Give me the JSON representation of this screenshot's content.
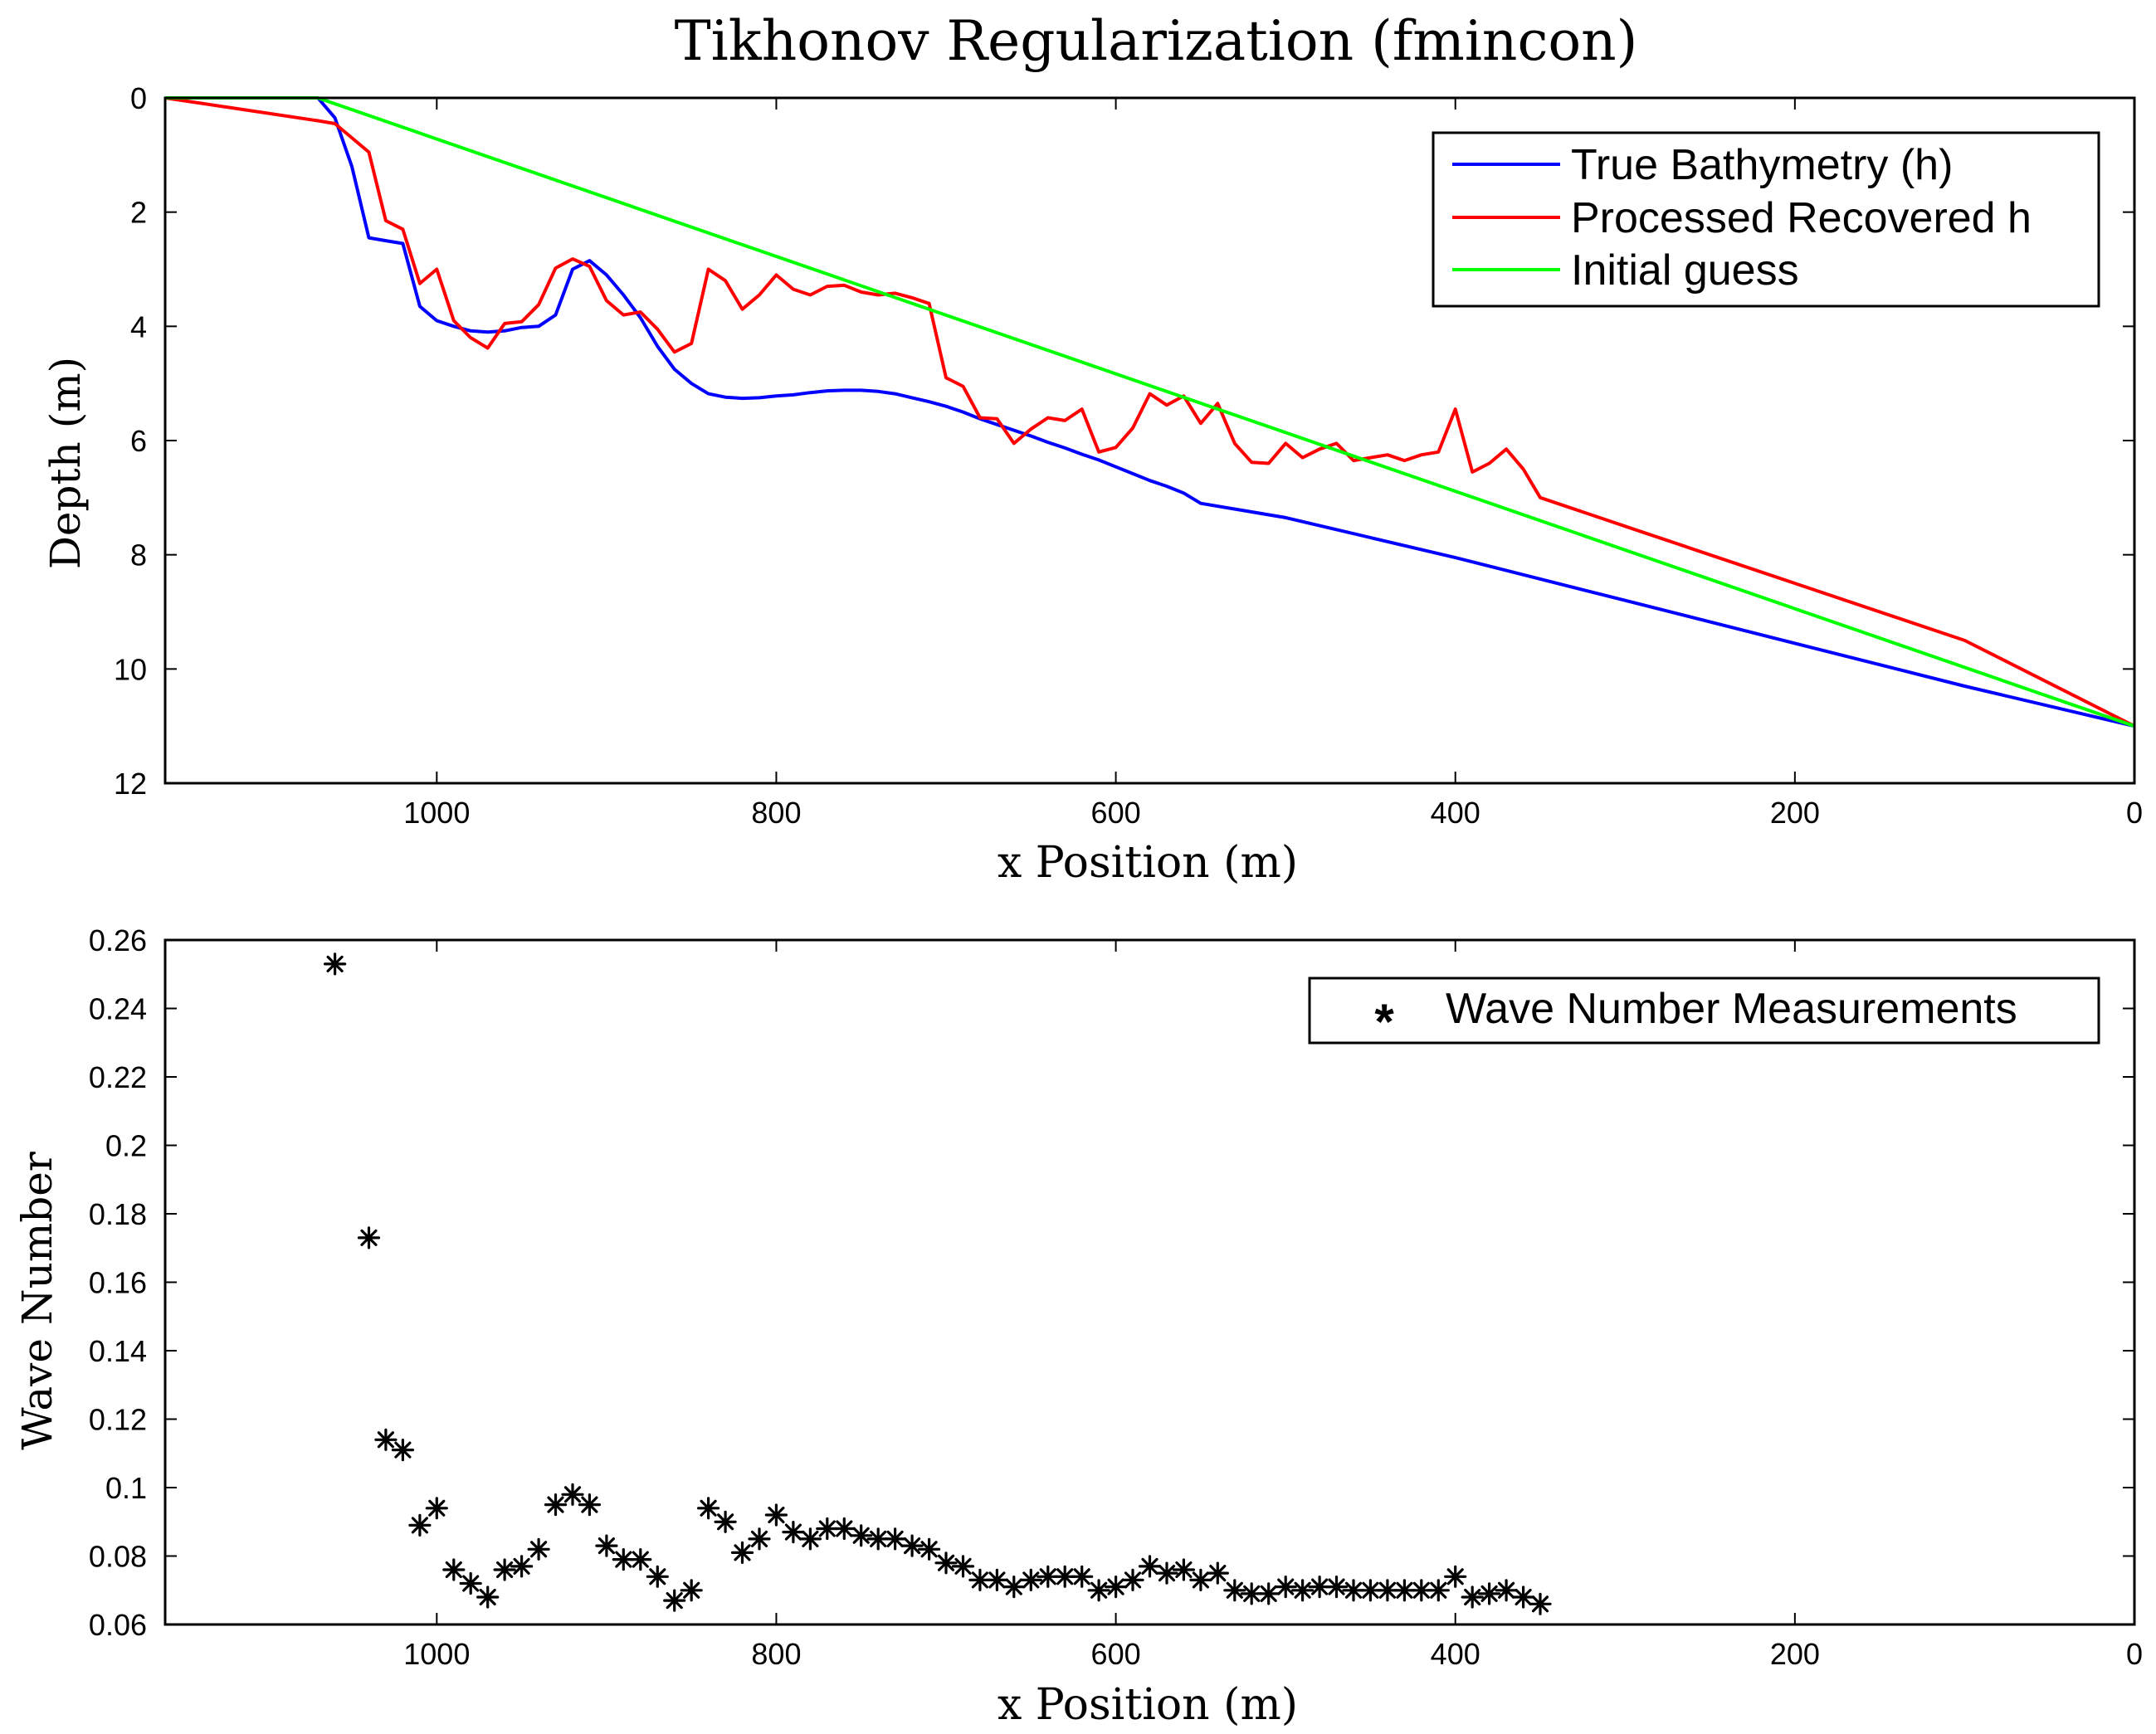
{
  "chart_data": [
    {
      "type": "line",
      "title": "Tikhonov Regularization (fmincon)",
      "xlabel": "x Position (m)",
      "ylabel": "Depth (m)",
      "xlim": [
        1160,
        0
      ],
      "ylim": [
        12,
        0
      ],
      "x_reversed": true,
      "y_reversed": true,
      "xticks": [
        "1000",
        "800",
        "600",
        "400",
        "200",
        "0"
      ],
      "yticks": [
        "0",
        "2",
        "4",
        "6",
        "8",
        "10",
        "12"
      ],
      "grid": false,
      "legend_position": "top-right",
      "series": [
        {
          "name": "True Bathymetry (h)",
          "color": "#0000ff",
          "points": [
            [
              1160,
              0
            ],
            [
              1070,
              0
            ],
            [
              1060,
              0.35
            ],
            [
              1050,
              1.2
            ],
            [
              1040,
              2.45
            ],
            [
              1030,
              2.5
            ],
            [
              1020,
              2.55
            ],
            [
              1010,
              3.65
            ],
            [
              1000,
              3.9
            ],
            [
              990,
              4.0
            ],
            [
              980,
              4.08
            ],
            [
              970,
              4.1
            ],
            [
              960,
              4.08
            ],
            [
              950,
              4.02
            ],
            [
              940,
              4.0
            ],
            [
              930,
              3.8
            ],
            [
              920,
              3.0
            ],
            [
              910,
              2.85
            ],
            [
              900,
              3.1
            ],
            [
              890,
              3.45
            ],
            [
              880,
              3.85
            ],
            [
              870,
              4.35
            ],
            [
              860,
              4.75
            ],
            [
              850,
              5.0
            ],
            [
              840,
              5.18
            ],
            [
              830,
              5.24
            ],
            [
              820,
              5.26
            ],
            [
              810,
              5.25
            ],
            [
              800,
              5.22
            ],
            [
              790,
              5.2
            ],
            [
              780,
              5.16
            ],
            [
              770,
              5.13
            ],
            [
              760,
              5.12
            ],
            [
              750,
              5.12
            ],
            [
              740,
              5.14
            ],
            [
              730,
              5.18
            ],
            [
              720,
              5.25
            ],
            [
              710,
              5.32
            ],
            [
              700,
              5.4
            ],
            [
              690,
              5.5
            ],
            [
              680,
              5.62
            ],
            [
              670,
              5.72
            ],
            [
              660,
              5.82
            ],
            [
              650,
              5.92
            ],
            [
              640,
              6.03
            ],
            [
              630,
              6.13
            ],
            [
              620,
              6.24
            ],
            [
              610,
              6.34
            ],
            [
              600,
              6.46
            ],
            [
              590,
              6.58
            ],
            [
              580,
              6.7
            ],
            [
              570,
              6.8
            ],
            [
              560,
              6.92
            ],
            [
              550,
              7.1
            ],
            [
              500,
              7.35
            ],
            [
              400,
              8.05
            ],
            [
              300,
              8.8
            ],
            [
              200,
              9.55
            ],
            [
              100,
              10.3
            ],
            [
              0,
              11.0
            ]
          ]
        },
        {
          "name": "Processed Recovered h",
          "color": "#ff0000",
          "points": [
            [
              1160,
              0
            ],
            [
              1070,
              0.4
            ],
            [
              1060,
              0.45
            ],
            [
              1040,
              0.95
            ],
            [
              1030,
              2.15
            ],
            [
              1020,
              2.3
            ],
            [
              1010,
              3.25
            ],
            [
              1000,
              3.0
            ],
            [
              990,
              3.9
            ],
            [
              980,
              4.2
            ],
            [
              970,
              4.38
            ],
            [
              960,
              3.95
            ],
            [
              950,
              3.92
            ],
            [
              940,
              3.62
            ],
            [
              930,
              2.98
            ],
            [
              920,
              2.82
            ],
            [
              910,
              2.95
            ],
            [
              900,
              3.55
            ],
            [
              890,
              3.8
            ],
            [
              880,
              3.75
            ],
            [
              870,
              4.05
            ],
            [
              860,
              4.45
            ],
            [
              850,
              4.3
            ],
            [
              840,
              3.0
            ],
            [
              830,
              3.2
            ],
            [
              820,
              3.7
            ],
            [
              810,
              3.45
            ],
            [
              800,
              3.1
            ],
            [
              790,
              3.35
            ],
            [
              780,
              3.45
            ],
            [
              770,
              3.3
            ],
            [
              760,
              3.28
            ],
            [
              750,
              3.4
            ],
            [
              740,
              3.45
            ],
            [
              730,
              3.42
            ],
            [
              720,
              3.5
            ],
            [
              710,
              3.6
            ],
            [
              700,
              4.9
            ],
            [
              690,
              5.05
            ],
            [
              680,
              5.6
            ],
            [
              670,
              5.62
            ],
            [
              660,
              6.05
            ],
            [
              650,
              5.8
            ],
            [
              640,
              5.6
            ],
            [
              630,
              5.65
            ],
            [
              620,
              5.45
            ],
            [
              610,
              6.2
            ],
            [
              600,
              6.12
            ],
            [
              590,
              5.78
            ],
            [
              580,
              5.18
            ],
            [
              570,
              5.38
            ],
            [
              560,
              5.22
            ],
            [
              550,
              5.7
            ],
            [
              540,
              5.35
            ],
            [
              530,
              6.05
            ],
            [
              520,
              6.38
            ],
            [
              510,
              6.4
            ],
            [
              500,
              6.05
            ],
            [
              490,
              6.3
            ],
            [
              480,
              6.15
            ],
            [
              470,
              6.05
            ],
            [
              460,
              6.35
            ],
            [
              450,
              6.3
            ],
            [
              440,
              6.25
            ],
            [
              430,
              6.35
            ],
            [
              420,
              6.25
            ],
            [
              410,
              6.2
            ],
            [
              400,
              5.45
            ],
            [
              390,
              6.55
            ],
            [
              380,
              6.4
            ],
            [
              370,
              6.15
            ],
            [
              360,
              6.5
            ],
            [
              350,
              7.0
            ],
            [
              300,
              7.5
            ],
            [
              200,
              8.5
            ],
            [
              100,
              9.5
            ],
            [
              0,
              11.0
            ]
          ]
        },
        {
          "name": "Initial guess",
          "color": "#00ff00",
          "points": [
            [
              1160,
              0
            ],
            [
              1070,
              0
            ],
            [
              0,
              11.0
            ]
          ]
        }
      ]
    },
    {
      "type": "scatter",
      "title": "",
      "xlabel": "x Position (m)",
      "ylabel": "Wave Number",
      "xlim": [
        1160,
        0
      ],
      "ylim": [
        0.06,
        0.26
      ],
      "x_reversed": true,
      "xticks": [
        "1000",
        "800",
        "600",
        "400",
        "200",
        "0"
      ],
      "yticks": [
        "0.06",
        "0.08",
        "0.1",
        "0.12",
        "0.14",
        "0.16",
        "0.18",
        "0.2",
        "0.22",
        "0.24",
        "0.26"
      ],
      "grid": false,
      "legend_position": "top-right",
      "series": [
        {
          "name": "Wave Number Measurements",
          "marker": "*",
          "color": "#000000",
          "points": [
            [
              1060,
              0.253
            ],
            [
              1040,
              0.173
            ],
            [
              1030,
              0.114
            ],
            [
              1020,
              0.111
            ],
            [
              1010,
              0.089
            ],
            [
              1000,
              0.094
            ],
            [
              990,
              0.076
            ],
            [
              980,
              0.072
            ],
            [
              970,
              0.068
            ],
            [
              960,
              0.076
            ],
            [
              950,
              0.077
            ],
            [
              940,
              0.082
            ],
            [
              930,
              0.095
            ],
            [
              920,
              0.098
            ],
            [
              910,
              0.095
            ],
            [
              900,
              0.083
            ],
            [
              890,
              0.079
            ],
            [
              880,
              0.079
            ],
            [
              870,
              0.074
            ],
            [
              860,
              0.067
            ],
            [
              850,
              0.07
            ],
            [
              840,
              0.094
            ],
            [
              830,
              0.09
            ],
            [
              820,
              0.081
            ],
            [
              810,
              0.085
            ],
            [
              800,
              0.092
            ],
            [
              790,
              0.087
            ],
            [
              780,
              0.085
            ],
            [
              770,
              0.088
            ],
            [
              760,
              0.088
            ],
            [
              750,
              0.086
            ],
            [
              740,
              0.085
            ],
            [
              730,
              0.085
            ],
            [
              720,
              0.083
            ],
            [
              710,
              0.082
            ],
            [
              700,
              0.078
            ],
            [
              690,
              0.077
            ],
            [
              680,
              0.073
            ],
            [
              670,
              0.073
            ],
            [
              660,
              0.071
            ],
            [
              650,
              0.073
            ],
            [
              640,
              0.074
            ],
            [
              630,
              0.074
            ],
            [
              620,
              0.074
            ],
            [
              610,
              0.07
            ],
            [
              600,
              0.071
            ],
            [
              590,
              0.073
            ],
            [
              580,
              0.077
            ],
            [
              570,
              0.075
            ],
            [
              560,
              0.076
            ],
            [
              550,
              0.073
            ],
            [
              540,
              0.075
            ],
            [
              530,
              0.07
            ],
            [
              520,
              0.069
            ],
            [
              510,
              0.069
            ],
            [
              500,
              0.071
            ],
            [
              490,
              0.07
            ],
            [
              480,
              0.071
            ],
            [
              470,
              0.071
            ],
            [
              460,
              0.07
            ],
            [
              450,
              0.07
            ],
            [
              440,
              0.07
            ],
            [
              430,
              0.07
            ],
            [
              420,
              0.07
            ],
            [
              410,
              0.07
            ],
            [
              400,
              0.074
            ],
            [
              390,
              0.068
            ],
            [
              380,
              0.069
            ],
            [
              370,
              0.07
            ],
            [
              360,
              0.068
            ],
            [
              350,
              0.066
            ]
          ]
        }
      ]
    }
  ]
}
